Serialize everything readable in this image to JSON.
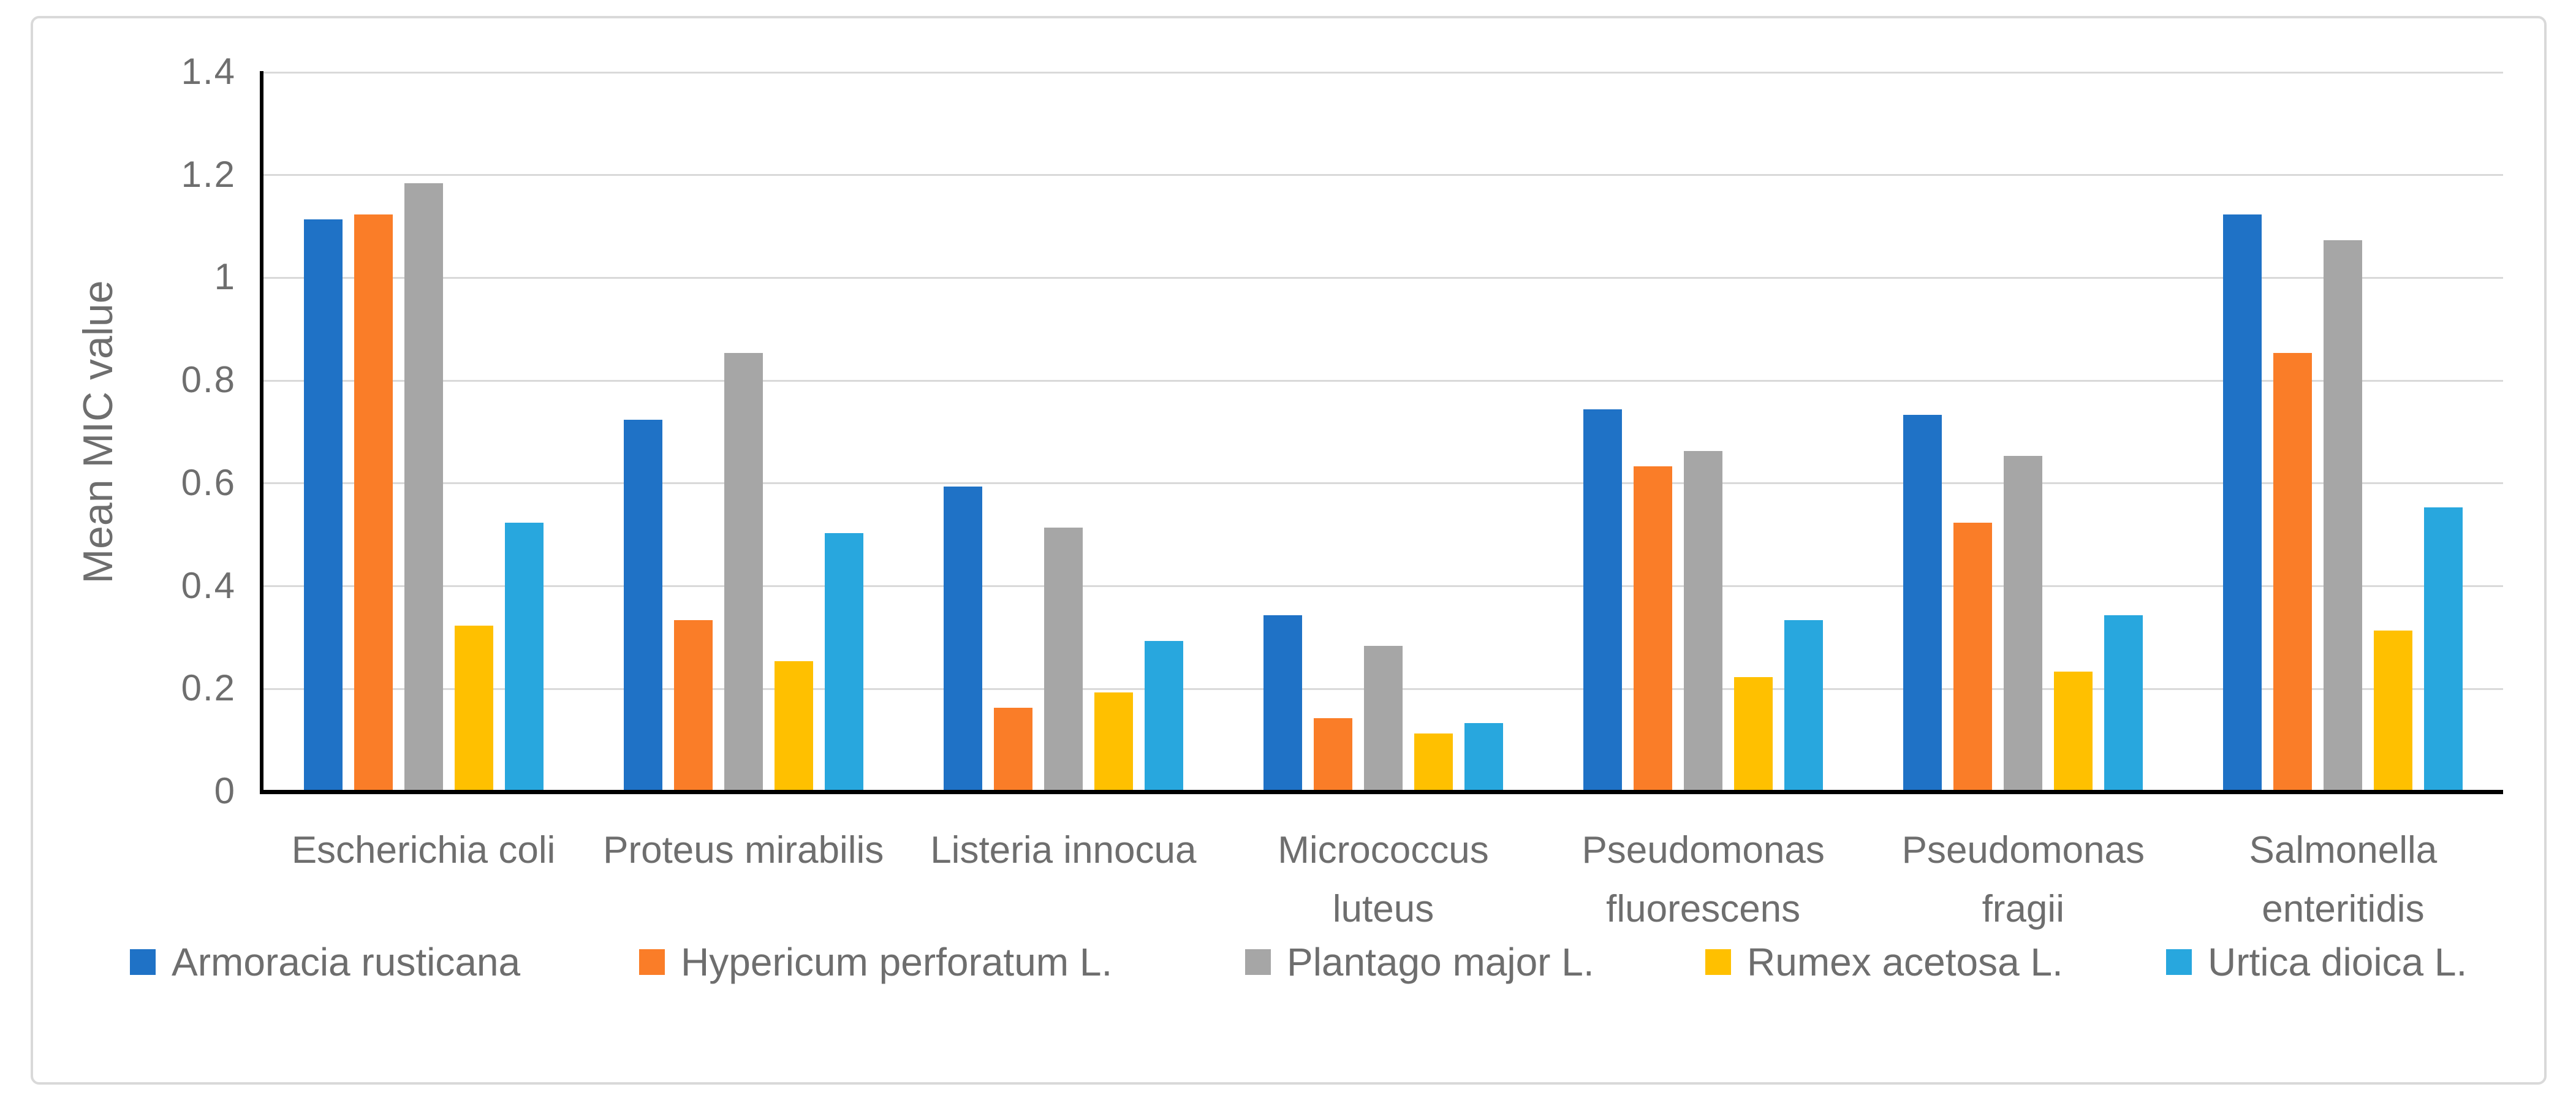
{
  "chart_data": {
    "type": "bar",
    "title": "",
    "ylabel": "Mean MIC value",
    "xlabel": "",
    "ylim": [
      0,
      1.4
    ],
    "ytick_labels": [
      "1.4",
      "1.2",
      "1",
      "0.8",
      "0.6",
      "0.4",
      "0.2",
      "0"
    ],
    "grid": true,
    "legend_position": "bottom",
    "categories": [
      "Escherichia coli",
      "Proteus mirabilis",
      "Listeria innocua",
      "Micrococcus luteus",
      "Pseudomonas fluorescens",
      "Pseudomonas fragii",
      "Salmonella enteritidis"
    ],
    "category_lines": [
      [
        "Escherichia coli"
      ],
      [
        "Proteus mirabilis"
      ],
      [
        "Listeria innocua"
      ],
      [
        "Micrococcus",
        "luteus"
      ],
      [
        "Pseudomonas",
        "fluorescens"
      ],
      [
        "Pseudomonas",
        "fragii"
      ],
      [
        "Salmonella",
        "enteritidis"
      ]
    ],
    "series": [
      {
        "name": "Armoracia rusticana",
        "color": "#1F72C6",
        "values": [
          1.11,
          0.72,
          0.59,
          0.34,
          0.74,
          0.73,
          1.12
        ]
      },
      {
        "name": "Hypericum perforatum L.",
        "color": "#FA7D28",
        "values": [
          1.12,
          0.33,
          0.16,
          0.14,
          0.63,
          0.52,
          0.85
        ]
      },
      {
        "name": "Plantago major L.",
        "color": "#A6A6A6",
        "values": [
          1.18,
          0.85,
          0.51,
          0.28,
          0.66,
          0.65,
          1.07
        ]
      },
      {
        "name": "Rumex acetosa L.",
        "color": "#FFC000",
        "values": [
          0.32,
          0.25,
          0.19,
          0.11,
          0.22,
          0.23,
          0.31
        ]
      },
      {
        "name": "Urtica dioica L.",
        "color": "#28A7DE",
        "values": [
          0.52,
          0.5,
          0.29,
          0.13,
          0.33,
          0.34,
          0.55
        ]
      }
    ]
  },
  "styles": {
    "background": "#FFFFFF",
    "frame_border_color": "#D9D9D9",
    "grid_color": "#D9D9D9",
    "axis_color": "#000000",
    "text_color": "#6E6E6E"
  }
}
